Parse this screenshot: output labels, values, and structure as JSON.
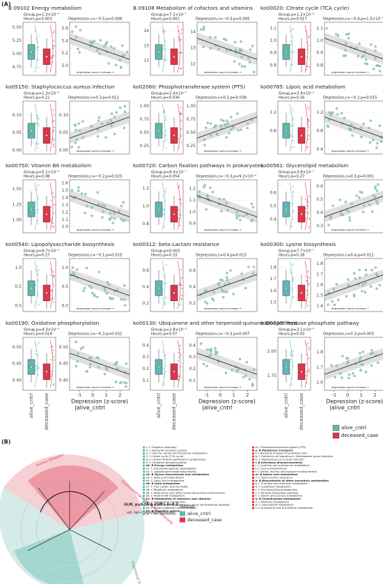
{
  "labels": {
    "a": "(A)",
    "b": "(B)"
  },
  "panels": [
    {
      "title": "B  09102 Energy metabolism",
      "group": "Group,p=1.3×10⁻⁴",
      "hours": "Hours,p=0.003",
      "depression": "Depression,c=−0.5,p=0.006",
      "box_ylim": [
        4.6,
        5.6
      ],
      "box_yticks": [
        4.75,
        {
          "value": 5,
          "label": "5.00"
        },
        5.25,
        {
          "value": 5.5,
          "label": "5.50"
        }
      ],
      "scatter_ylim": [
        4.85,
        5.7
      ],
      "scatter_yticks": [
        {
          "value": 5,
          "label": "5.0"
        },
        5.2,
        5.4,
        5.6
      ]
    },
    {
      "title": "B  09108 Metabolism of cofactors and vitamins",
      "group": "Group,p=7.1×10⁻⁷",
      "hours": "Hours,p=0.002",
      "depression": "Depression,c=−0.3,p=0.005",
      "box_ylim": [
        11,
        14.6
      ],
      "box_yticks": [
        12,
        13,
        14
      ],
      "scatter_ylim": [
        11.3,
        14.6
      ],
      "scatter_yticks": [
        12,
        13,
        14
      ]
    },
    {
      "title": "ko00020: Citrate cycle (TCA cycle)",
      "group": "Group,p=1.2×10⁻⁶",
      "hours": "Hours,p=0.017",
      "depression": "Depression,c=−0.4,p=1.5×10⁻⁵",
      "box_ylim": [
        0.72,
        1.15
      ],
      "box_yticks": [
        0.8,
        0.9,
        {
          "value": 1,
          "label": "1.0"
        },
        1.1
      ],
      "scatter_ylim": [
        0.72,
        1.15
      ],
      "scatter_yticks": [
        0.8,
        0.9,
        {
          "value": 1,
          "label": "1.0"
        },
        1.1
      ]
    },
    {
      "title": "ko05150: Staphylococcus aureus infection",
      "group": "Group,p=1.3×10⁻⁴",
      "hours": "Hours,p=0.22",
      "depression": "Depression,c=0.3,p=0.012",
      "box_ylim": [
        -0.01,
        0.14
      ],
      "box_yticks": [
        {
          "value": 0,
          "label": "0.00"
        },
        0.05,
        {
          "value": 0.1,
          "label": "0.10"
        }
      ],
      "scatter_ylim": [
        -0.01,
        0.14
      ],
      "scatter_yticks": [
        {
          "value": 0,
          "label": "0.00"
        },
        0.05,
        {
          "value": 0.1,
          "label": "0.10"
        }
      ]
    },
    {
      "title": "ko02060: Phosphotransferase system (PTS)",
      "group": "Group,p=2.4×10⁻⁷",
      "hours": "Hours,p=0.036",
      "depression": "Depression,c=0.2,p=0.038",
      "box_ylim": [
        0.1,
        1.1
      ],
      "box_yticks": [
        0.25,
        {
          "value": 0.5,
          "label": "0.50"
        },
        0.75,
        {
          "value": 1,
          "label": "1.00"
        }
      ],
      "scatter_ylim": [
        0.1,
        1.1
      ],
      "scatter_yticks": [
        0.25,
        {
          "value": 0.5,
          "label": "0.50"
        },
        0.75,
        {
          "value": 1,
          "label": "1.00"
        }
      ]
    },
    {
      "title": "ko00785: Lipoic acid metabolism",
      "group": "Group,p=3.9×10⁻⁵",
      "hours": "Hours,p=0.16",
      "depression": "Depression,c=−0.2,p=0.015",
      "box_ylim": [
        0.3,
        1.45
      ],
      "box_yticks": [
        0.8,
        1.2
      ],
      "scatter_ylim": [
        0.3,
        1.45
      ],
      "scatter_yticks": [
        0.4,
        0.8,
        1.2
      ]
    },
    {
      "title": "ko00750: Vitamin B6 metabolism",
      "group": "Group,p=5.1×10⁻⁴",
      "hours": "Hours,p=0.08",
      "depression": "Depression,c=−0.2,p=0.025",
      "box_ylim": [
        0.8,
        1.65
      ],
      "box_yticks": [
        {
          "value": 1,
          "label": "1.00"
        },
        1.25,
        {
          "value": 1.5,
          "label": "1.50"
        }
      ],
      "scatter_ylim": [
        0.92,
        1.65
      ],
      "scatter_yticks": [
        {
          "value": 1,
          "label": "1.0"
        },
        1.1,
        1.2,
        1.3,
        1.4,
        1.5,
        1.6
      ]
    },
    {
      "title": "ko00720: Carbon fixation pathways in prokaryotes",
      "group": "Group,p=8.4×10⁻⁷",
      "hours": "Hours,p=0.054",
      "depression": "Depression,c=−0.3,p=9.2×10⁻⁴",
      "box_ylim": [
        0.7,
        1.3
      ],
      "box_yticks": [
        0.8,
        {
          "value": 1,
          "label": "1.0"
        },
        1.2
      ],
      "scatter_ylim": [
        0.82,
        1.28
      ],
      "scatter_yticks": [
        0.9,
        {
          "value": 1,
          "label": "1.0"
        },
        1.1,
        1.2
      ]
    },
    {
      "title": "ko00561: Glycerolipid metabolism",
      "group": "Group,p=3.8×10⁻⁷",
      "hours": "Hours,p=0.27",
      "depression": "Depression,c=0.3,p=0.001",
      "box_ylim": [
        0.3,
        0.7
      ],
      "box_yticks": [
        0.4,
        0.5,
        0.6
      ],
      "scatter_ylim": [
        0.25,
        0.65
      ],
      "scatter_yticks": [
        0.3,
        0.4,
        0.5,
        0.6
      ]
    },
    {
      "title": "ko00540: Lipopolysaccharide biosynthesis",
      "group": "Group,p=9.7×10⁻⁵",
      "hours": "Hours,p=0.27",
      "depression": "Depression,c=−0.1,p=0.015",
      "box_ylim": [
        -0.15,
        1.25
      ],
      "box_yticks": [
        {
          "value": 0,
          "label": "0.0"
        },
        0.5,
        {
          "value": 1,
          "label": "1.0"
        }
      ],
      "scatter_ylim": [
        -0.15,
        1.25
      ],
      "scatter_yticks": [
        {
          "value": 0,
          "label": "0.0"
        },
        0.5,
        {
          "value": 1,
          "label": "1.0"
        }
      ]
    },
    {
      "title": "ko00312: beta-Lactam resistance",
      "group": "Group,p=0.002",
      "hours": "Hours,p=0.33",
      "depression": "Depression,c=0.4,p=0.015",
      "box_ylim": [
        0.1,
        0.75
      ],
      "box_yticks": [
        0.2,
        0.4,
        0.6
      ],
      "scatter_ylim": [
        0.1,
        0.75
      ],
      "scatter_yticks": [
        0.2,
        0.4,
        0.6
      ]
    },
    {
      "title": "ko00300: Lysine biosynthesis",
      "group": "Group,p=7.7×10⁻⁷",
      "hours": "Hours,p=0.18",
      "depression": "Depression,c=0.4,p=0.011",
      "box_ylim": [
        1.42,
        1.88
      ],
      "box_yticks": [
        1.5,
        1.6,
        1.7,
        1.8
      ],
      "scatter_ylim": [
        1.35,
        1.85
      ],
      "scatter_yticks": [
        1.4,
        1.5,
        1.6,
        1.7,
        1.8
      ]
    },
    {
      "title": "ko00190: Oxidative phosphorylation",
      "group": "Group,p=4.3×10⁻⁵",
      "hours": "Hours,p=0.018",
      "depression": "Depression,c=−0.3,p=0.031",
      "box_ylim": [
        0.37,
        0.53
      ],
      "box_yticks": [
        {
          "value": 0.4,
          "label": "0.40"
        },
        0.45,
        {
          "value": 0.5,
          "label": "0.50"
        }
      ],
      "scatter_ylim": [
        0.37,
        0.53
      ],
      "scatter_yticks": [
        {
          "value": 0.4,
          "label": "0.40"
        },
        0.45,
        {
          "value": 0.5,
          "label": "0.50"
        }
      ]
    },
    {
      "title": "ko00130: Ubiquinone and other terpenoid-quinone biosynthesis",
      "group": "Group,p=2.8×10⁻⁵",
      "hours": "Hours,p=0.07",
      "depression": "Depression,c=−0.3,p=0.007",
      "box_ylim": [
        0.02,
        0.47
      ],
      "box_yticks": [
        0.1,
        0.2,
        0.3,
        0.4
      ],
      "scatter_ylim": [
        0.02,
        0.47
      ],
      "scatter_yticks": [
        0.1,
        0.2,
        0.3,
        0.4
      ]
    },
    {
      "title": "ko00030: Pentose phosphate pathway",
      "group": "Group,p=3.1×10⁻⁴",
      "hours": "Hours,p=0.43",
      "depression": "Depression,c=0.3,p=0.003",
      "box_ylim": [
        1.6,
        2.15
      ],
      "box_yticks": [
        1.75,
        {
          "value": 2,
          "label": "2.00"
        }
      ],
      "scatter_ylim": [
        1.55,
        1.9
      ],
      "scatter_yticks": [
        1.6,
        1.7,
        1.8
      ]
    }
  ],
  "arrow_note": "depression socre increase →",
  "categories": [
    "alive_cntrl",
    "deceased_case"
  ],
  "scatter_xlim": [
    -1.7,
    2.7
  ],
  "scatter_xticks": [
    -1,
    0,
    1,
    2
  ],
  "x_label": "Depression (z-score)",
  "x_sublabel": "|alive_cntrl",
  "legend": [
    {
      "name": "alive_cntrl",
      "color": "#5fb8b0"
    },
    {
      "name": "deceased_case",
      "color": "#e0344a"
    }
  ],
  "cladogram": {
    "sectors": [
      "Human Diseases",
      "Environmental Information Processing",
      "Organismal Systems"
    ],
    "note1": "GLM, p≤0.05 & Cliff's δ>0.2",
    "note2": "adj. Age+Sex+HoursToSample",
    "legend_title": "Group",
    "left_items": [
      "c: C Flagellar assembly",
      "d: C Bacterial secretion system",
      "e: C Glycine, serine and threonine metabolism",
      "f: C Citrate cycle (TCA cycle)",
      "g: C Carbon fixation pathways in prokaryotes",
      "h: C Oxidative phosphorylation",
      "a0: B Energy metabolism",
      "a1: C Glycosaminoglycan degradation",
      "a2: C Lipopolysaccharide biosynthesis",
      "a3: B Glycan biosynthesis and metabolism",
      "a4: C Fatty acid biosynthesis",
      "a5: C Lipoic acid metabolism",
      "a6: B Lipid metabolism",
      "a7: C One carbon pool by folate",
      "a8: C Riboflavin metabolism",
      "a9: C Ubiquinone and other terpenoid-quinone biosynthesis",
      "b0: C Vitamin B6 metabolism",
      "b1: B Metabolism of cofactors and vitamins",
      "b2: C Glutathione metabolism",
      "b3: C Biosynthesis of siderophore group nonribosomal peptides",
      "b4: C Protein digestion and absorption",
      "b5: B Digestive system",
      "b6: C ABC transporters"
    ],
    "right_items": [
      "d: C Phosphotransferase system (PTS)",
      "e: B Membrane transport",
      "f: C Bacterial invasion of epithelial cells",
      "g: C Epithelial cell signaling in Helicobacter pylori infection",
      "h: C Staphylococcus aureus infection",
      "i: B Infectious disease:bacterial",
      "j: C Cysteine and methionine metabolism",
      "k: C Lysine biosynthesis",
      "l: C Valine, leucine and isoleucine biosynthesis",
      "m: B Amino acid metabolism",
      "n: C beta-Lactam resistance",
      "o: B Biosynthesis of other secondary metabolites",
      "p: C Fructose and mannose metabolism",
      "q: C Galactose metabolism",
      "r: C Glycolysis/Gluconeogenesis",
      "s: C Pentose phosphate pathway",
      "t: C Starch and sucrose metabolism",
      "u: B Carbohydrate metabolism",
      "v: C Methane metabolism",
      "w: C Glycerolipid metabolism",
      "x: C D-Arginine and D-ornithine metabolism"
    ]
  }
}
